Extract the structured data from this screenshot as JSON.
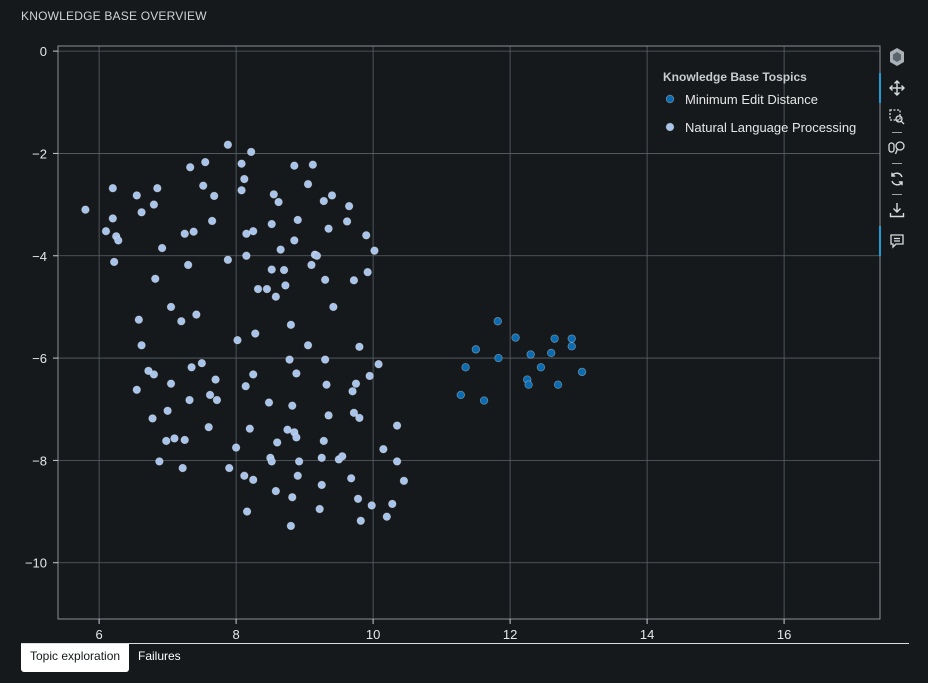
{
  "header": {
    "title": "KNOWLEDGE BASE OVERVIEW"
  },
  "tabs": [
    {
      "label": "Topic exploration",
      "active": true
    },
    {
      "label": "Failures",
      "active": false
    }
  ],
  "toolbar": {
    "tools": [
      {
        "name": "logo-icon",
        "interactable": false
      },
      {
        "name": "pan-tool-icon",
        "interactable": true,
        "active": true
      },
      {
        "name": "box-zoom-icon",
        "interactable": true
      },
      {
        "name": "wheel-zoom-icon",
        "interactable": true
      },
      {
        "name": "reset-icon",
        "interactable": true
      },
      {
        "name": "save-icon",
        "interactable": true
      },
      {
        "name": "hover-tooltip-icon",
        "interactable": true,
        "active": true
      }
    ],
    "accent_color": "#1f9bd7"
  },
  "chart_data": {
    "type": "scatter",
    "title": "",
    "xlabel": "",
    "ylabel": "",
    "xlim": [
      5.4,
      17.4
    ],
    "ylim": [
      -11.1,
      0.1
    ],
    "x_ticks": [
      6,
      8,
      10,
      12,
      14,
      16
    ],
    "y_ticks": [
      0,
      -2,
      -4,
      -6,
      -8,
      -10
    ],
    "grid": true,
    "legend": {
      "title": "Knowledge Base Tospics",
      "position": "top-right",
      "entries": [
        "Minimum Edit Distance",
        "Natural Language Processing"
      ]
    },
    "series": [
      {
        "name": "Minimum Edit Distance",
        "color": "#0a6bb0",
        "points": [
          [
            11.28,
            -6.72
          ],
          [
            11.35,
            -6.18
          ],
          [
            11.5,
            -5.83
          ],
          [
            11.62,
            -6.83
          ],
          [
            11.82,
            -5.28
          ],
          [
            11.83,
            -6.0
          ],
          [
            12.08,
            -5.6
          ],
          [
            12.25,
            -6.42
          ],
          [
            12.27,
            -6.52
          ],
          [
            12.3,
            -5.93
          ],
          [
            12.45,
            -6.18
          ],
          [
            12.6,
            -5.9
          ],
          [
            12.65,
            -5.62
          ],
          [
            12.7,
            -6.52
          ],
          [
            12.9,
            -5.62
          ],
          [
            12.9,
            -5.77
          ],
          [
            13.05,
            -6.27
          ]
        ]
      },
      {
        "name": "Natural Language Processing",
        "color": "#a9c4ea",
        "points": [
          [
            5.8,
            -3.1
          ],
          [
            6.1,
            -3.52
          ],
          [
            6.2,
            -2.68
          ],
          [
            6.2,
            -3.27
          ],
          [
            6.25,
            -3.62
          ],
          [
            6.28,
            -3.7
          ],
          [
            6.22,
            -4.12
          ],
          [
            6.55,
            -6.62
          ],
          [
            6.55,
            -2.82
          ],
          [
            6.58,
            -5.25
          ],
          [
            6.62,
            -5.75
          ],
          [
            6.62,
            -3.15
          ],
          [
            6.72,
            -6.25
          ],
          [
            6.78,
            -7.18
          ],
          [
            6.8,
            -6.32
          ],
          [
            6.8,
            -3.0
          ],
          [
            6.82,
            -4.45
          ],
          [
            6.85,
            -2.68
          ],
          [
            6.88,
            -8.02
          ],
          [
            6.92,
            -3.85
          ],
          [
            6.98,
            -7.62
          ],
          [
            7.0,
            -7.03
          ],
          [
            7.05,
            -6.5
          ],
          [
            7.05,
            -5.0
          ],
          [
            7.1,
            -7.57
          ],
          [
            7.2,
            -5.28
          ],
          [
            7.22,
            -8.15
          ],
          [
            7.25,
            -7.6
          ],
          [
            7.25,
            -3.57
          ],
          [
            7.3,
            -4.18
          ],
          [
            7.32,
            -6.82
          ],
          [
            7.33,
            -2.27
          ],
          [
            7.35,
            -6.18
          ],
          [
            7.42,
            -5.15
          ],
          [
            7.5,
            -6.1
          ],
          [
            7.52,
            -2.63
          ],
          [
            7.55,
            -2.17
          ],
          [
            7.6,
            -7.35
          ],
          [
            7.62,
            -6.72
          ],
          [
            7.65,
            -3.32
          ],
          [
            7.68,
            -2.83
          ],
          [
            7.7,
            -6.42
          ],
          [
            7.72,
            -6.82
          ],
          [
            7.88,
            -4.08
          ],
          [
            7.88,
            -1.83
          ],
          [
            7.9,
            -8.15
          ],
          [
            8.0,
            -7.75
          ],
          [
            8.02,
            -5.65
          ],
          [
            8.08,
            -2.2
          ],
          [
            8.08,
            -2.72
          ],
          [
            8.12,
            -8.3
          ],
          [
            8.12,
            -2.5
          ],
          [
            8.14,
            -6.55
          ],
          [
            8.15,
            -4.0
          ],
          [
            8.15,
            -3.57
          ],
          [
            8.16,
            -9.0
          ],
          [
            8.2,
            -7.38
          ],
          [
            8.22,
            -1.97
          ],
          [
            8.25,
            -3.52
          ],
          [
            8.25,
            -6.32
          ],
          [
            8.25,
            -8.38
          ],
          [
            8.28,
            -5.52
          ],
          [
            8.32,
            -4.65
          ],
          [
            8.45,
            -4.65
          ],
          [
            8.48,
            -6.87
          ],
          [
            8.5,
            -7.95
          ],
          [
            8.52,
            -4.27
          ],
          [
            8.52,
            -3.38
          ],
          [
            8.52,
            -8.02
          ],
          [
            8.55,
            -2.8
          ],
          [
            8.58,
            -4.8
          ],
          [
            8.58,
            -8.6
          ],
          [
            8.6,
            -7.65
          ],
          [
            8.62,
            -2.95
          ],
          [
            8.65,
            -3.88
          ],
          [
            8.7,
            -4.28
          ],
          [
            8.72,
            -4.58
          ],
          [
            8.75,
            -7.4
          ],
          [
            8.78,
            -6.03
          ],
          [
            8.8,
            -5.35
          ],
          [
            8.8,
            -9.28
          ],
          [
            8.82,
            -8.72
          ],
          [
            8.82,
            -6.93
          ],
          [
            8.85,
            -2.24
          ],
          [
            8.85,
            -7.45
          ],
          [
            8.85,
            -3.7
          ],
          [
            8.88,
            -6.3
          ],
          [
            8.88,
            -7.55
          ],
          [
            8.9,
            -8.3
          ],
          [
            8.9,
            -3.3
          ],
          [
            8.92,
            -8.02
          ],
          [
            9.05,
            -2.6
          ],
          [
            9.05,
            -5.75
          ],
          [
            9.1,
            -4.18
          ],
          [
            9.12,
            -2.22
          ],
          [
            9.15,
            -3.98
          ],
          [
            9.18,
            -4.0
          ],
          [
            9.22,
            -8.95
          ],
          [
            9.25,
            -7.95
          ],
          [
            9.25,
            -8.48
          ],
          [
            9.28,
            -2.93
          ],
          [
            9.28,
            -7.62
          ],
          [
            9.3,
            -4.47
          ],
          [
            9.3,
            -6.03
          ],
          [
            9.32,
            -6.52
          ],
          [
            9.35,
            -7.12
          ],
          [
            9.4,
            -2.82
          ],
          [
            9.42,
            -5.0
          ],
          [
            9.5,
            -7.98
          ],
          [
            9.55,
            -7.92
          ],
          [
            9.62,
            -3.33
          ],
          [
            9.65,
            -3.03
          ],
          [
            9.68,
            -8.35
          ],
          [
            9.7,
            -6.65
          ],
          [
            9.72,
            -7.07
          ],
          [
            9.72,
            -4.48
          ],
          [
            9.75,
            -6.5
          ],
          [
            9.78,
            -8.75
          ],
          [
            9.8,
            -7.17
          ],
          [
            9.8,
            -5.78
          ],
          [
            9.82,
            -9.18
          ],
          [
            9.9,
            -3.6
          ],
          [
            9.92,
            -4.32
          ],
          [
            9.95,
            -6.35
          ],
          [
            9.98,
            -8.88
          ],
          [
            10.02,
            -3.9
          ],
          [
            10.08,
            -6.12
          ],
          [
            10.15,
            -7.78
          ],
          [
            10.2,
            -9.1
          ],
          [
            10.28,
            -8.85
          ],
          [
            10.35,
            -7.32
          ],
          [
            10.35,
            -8.02
          ],
          [
            10.45,
            -8.4
          ],
          [
            9.35,
            -3.47
          ],
          [
            7.38,
            -3.53
          ]
        ]
      }
    ]
  }
}
